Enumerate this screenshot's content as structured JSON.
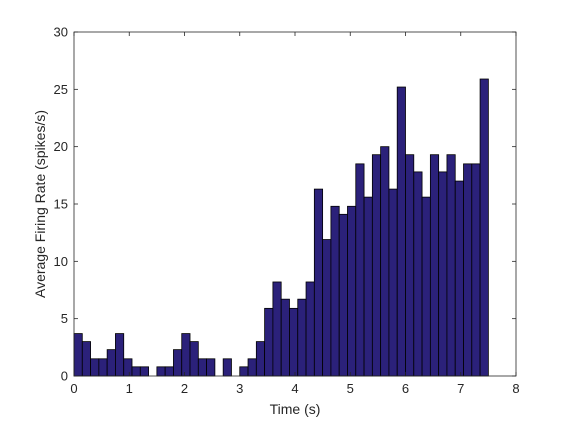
{
  "chart_data": {
    "type": "bar",
    "xlabel": "Time (s)",
    "ylabel": "Average Firing Rate (spikes/s)",
    "xlim": [
      0,
      8
    ],
    "ylim": [
      0,
      30
    ],
    "xticks": [
      0,
      1,
      2,
      3,
      4,
      5,
      6,
      7,
      8
    ],
    "yticks": [
      0,
      5,
      10,
      15,
      20,
      25,
      30
    ],
    "grid": false,
    "bin_width": 0.15,
    "bin_starts": [
      0,
      0.15,
      0.3,
      0.45,
      0.6,
      0.75,
      0.9,
      1.05,
      1.2,
      1.35,
      1.5,
      1.65,
      1.8,
      1.95,
      2.1,
      2.25,
      2.4,
      2.55,
      2.7,
      2.85,
      3.0,
      3.15,
      3.3,
      3.45,
      3.6,
      3.75,
      3.9,
      4.05,
      4.2,
      4.35,
      4.5,
      4.65,
      4.8,
      4.95,
      5.1,
      5.25,
      5.4,
      5.55,
      5.7,
      5.85,
      6.0,
      6.15,
      6.3,
      6.45,
      6.6,
      6.75,
      6.9,
      7.05,
      7.2,
      7.35
    ],
    "values": [
      3.7,
      3.0,
      1.5,
      1.5,
      2.3,
      3.7,
      1.5,
      0.8,
      0.8,
      0,
      0.8,
      0.8,
      2.3,
      3.7,
      3.0,
      1.5,
      1.5,
      0,
      1.5,
      0,
      0.8,
      1.5,
      3.0,
      5.9,
      8.2,
      6.7,
      5.9,
      6.7,
      8.2,
      16.3,
      11.9,
      14.8,
      14.1,
      14.8,
      18.5,
      15.6,
      19.3,
      20.0,
      16.3,
      25.2,
      19.3,
      17.8,
      15.6,
      19.3,
      17.8,
      19.3,
      17.0,
      18.5,
      18.5,
      25.9
    ],
    "colors": {
      "bar_fill": "#2b217a",
      "bar_edge": "#000000",
      "axis": "#262626"
    }
  }
}
